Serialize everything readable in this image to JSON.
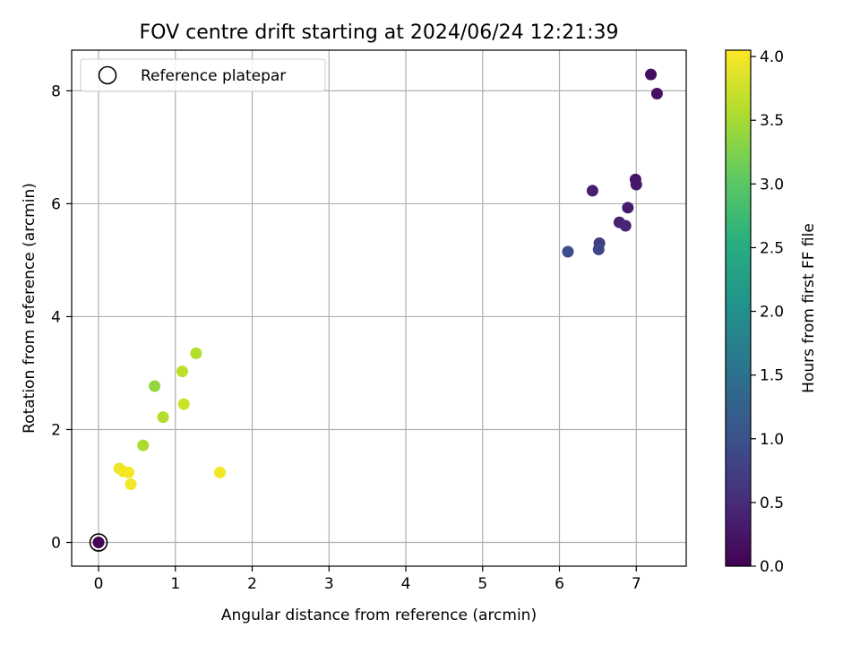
{
  "chart_data": {
    "type": "scatter",
    "title": "FOV centre drift starting at 2024/06/24 12:21:39",
    "xlabel": "Angular distance from reference (arcmin)",
    "ylabel": "Rotation from reference (arcmin)",
    "xlim": [
      -0.35,
      7.65
    ],
    "ylim": [
      -0.42,
      8.72
    ],
    "xticks": [
      0,
      1,
      2,
      3,
      4,
      5,
      6,
      7
    ],
    "yticks": [
      0,
      2,
      4,
      6,
      8
    ],
    "grid": true,
    "legend": {
      "position": "top-left",
      "entries": [
        "Reference platepar"
      ]
    },
    "reference_point": {
      "x": 0,
      "y": 0
    },
    "colorbar": {
      "label": "Hours from first FF file",
      "range": [
        0.0,
        4.05
      ],
      "ticks": [
        "0.0",
        "0.5",
        "1.0",
        "1.5",
        "2.0",
        "2.5",
        "3.0",
        "3.5",
        "4.0"
      ],
      "colormap": "viridis"
    },
    "points": [
      {
        "x": 7.19,
        "y": 8.29,
        "t": 0.15
      },
      {
        "x": 7.27,
        "y": 7.95,
        "t": 0.18
      },
      {
        "x": 6.99,
        "y": 6.43,
        "t": 0.22
      },
      {
        "x": 7.0,
        "y": 6.34,
        "t": 0.25
      },
      {
        "x": 6.43,
        "y": 6.23,
        "t": 0.35
      },
      {
        "x": 6.89,
        "y": 5.93,
        "t": 0.3
      },
      {
        "x": 6.78,
        "y": 5.67,
        "t": 0.38
      },
      {
        "x": 6.86,
        "y": 5.61,
        "t": 0.42
      },
      {
        "x": 6.52,
        "y": 5.3,
        "t": 0.75
      },
      {
        "x": 6.51,
        "y": 5.19,
        "t": 0.85
      },
      {
        "x": 6.11,
        "y": 5.15,
        "t": 0.95
      },
      {
        "x": 0.0,
        "y": 0.0,
        "t": 0.02
      },
      {
        "x": 1.27,
        "y": 3.35,
        "t": 3.6
      },
      {
        "x": 1.09,
        "y": 3.03,
        "t": 3.65
      },
      {
        "x": 0.73,
        "y": 2.77,
        "t": 3.4
      },
      {
        "x": 1.11,
        "y": 2.45,
        "t": 3.75
      },
      {
        "x": 0.84,
        "y": 2.22,
        "t": 3.6
      },
      {
        "x": 0.58,
        "y": 1.72,
        "t": 3.55
      },
      {
        "x": 0.27,
        "y": 1.31,
        "t": 3.95
      },
      {
        "x": 0.32,
        "y": 1.26,
        "t": 3.98
      },
      {
        "x": 0.39,
        "y": 1.24,
        "t": 4.0
      },
      {
        "x": 1.58,
        "y": 1.24,
        "t": 3.98
      },
      {
        "x": 0.42,
        "y": 1.03,
        "t": 3.98
      }
    ]
  }
}
